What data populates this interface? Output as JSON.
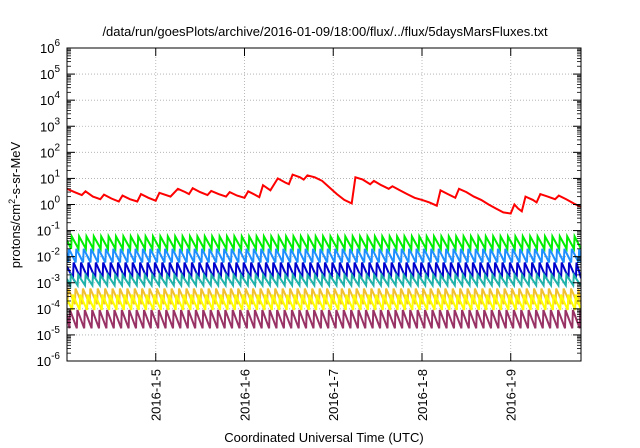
{
  "chart_data": {
    "type": "line",
    "title": "/data/run/goesPlots/archive/2016-01-09/18:00/flux/../flux/5daysMarsFluxes.txt",
    "xlabel": "Coordinated Universal Time (UTC)",
    "ylabel": {
      "prefix": "protons/cm",
      "superscript": "2",
      "suffix": "-s-sr-MeV"
    },
    "x_range": [
      "2016-01-04 00:00",
      "2016-01-09 19:00"
    ],
    "x_ticks": [
      "2016-1-5",
      "2016-1-6",
      "2016-1-7",
      "2016-1-8",
      "2016-1-9"
    ],
    "y_scale": "log",
    "y_range": [
      1e-06,
      1000000.0
    ],
    "y_ticks": [
      {
        "base": "10",
        "exp": "-6"
      },
      {
        "base": "10",
        "exp": "-5"
      },
      {
        "base": "10",
        "exp": "-4"
      },
      {
        "base": "10",
        "exp": "-3"
      },
      {
        "base": "10",
        "exp": "-2"
      },
      {
        "base": "10",
        "exp": "-1"
      },
      {
        "base": "10",
        "exp": "0"
      },
      {
        "base": "10",
        "exp": "1"
      },
      {
        "base": "10",
        "exp": "2"
      },
      {
        "base": "10",
        "exp": "3"
      },
      {
        "base": "10",
        "exp": "4"
      },
      {
        "base": "10",
        "exp": "5"
      },
      {
        "base": "10",
        "exp": "6"
      }
    ],
    "grid": true,
    "legend": "none",
    "series": [
      {
        "color": "#ff0000",
        "style": "irregular",
        "points": [
          [
            "2016-01-04 00:00",
            4.0
          ],
          [
            "2016-01-04 02:00",
            3.0
          ],
          [
            "2016-01-04 04:00",
            2.3
          ],
          [
            "2016-01-04 05:00",
            3.2
          ],
          [
            "2016-01-04 07:00",
            2.0
          ],
          [
            "2016-01-04 09:00",
            1.6
          ],
          [
            "2016-01-04 10:00",
            2.4
          ],
          [
            "2016-01-04 12:00",
            1.7
          ],
          [
            "2016-01-04 14:00",
            1.3
          ],
          [
            "2016-01-04 15:00",
            2.2
          ],
          [
            "2016-01-04 17:00",
            1.6
          ],
          [
            "2016-01-04 19:00",
            1.3
          ],
          [
            "2016-01-04 20:00",
            2.5
          ],
          [
            "2016-01-04 22:00",
            1.8
          ],
          [
            "2016-01-05 00:00",
            1.4
          ],
          [
            "2016-01-05 01:00",
            2.8
          ],
          [
            "2016-01-05 04:00",
            2.0
          ],
          [
            "2016-01-05 06:00",
            4.0
          ],
          [
            "2016-01-05 08:00",
            3.0
          ],
          [
            "2016-01-05 09:00",
            2.5
          ],
          [
            "2016-01-05 10:00",
            4.2
          ],
          [
            "2016-01-05 12:00",
            3.0
          ],
          [
            "2016-01-05 14:00",
            2.3
          ],
          [
            "2016-01-05 15:00",
            3.3
          ],
          [
            "2016-01-05 17:00",
            2.5
          ],
          [
            "2016-01-05 19:00",
            2.0
          ],
          [
            "2016-01-05 20:00",
            3.0
          ],
          [
            "2016-01-05 22:00",
            2.2
          ],
          [
            "2016-01-06 00:00",
            1.8
          ],
          [
            "2016-01-06 01:00",
            3.2
          ],
          [
            "2016-01-06 03:00",
            2.3
          ],
          [
            "2016-01-06 04:00",
            1.9
          ],
          [
            "2016-01-06 05:00",
            5.5
          ],
          [
            "2016-01-06 07:00",
            3.5
          ],
          [
            "2016-01-06 09:00",
            10.0
          ],
          [
            "2016-01-06 11:00",
            7.0
          ],
          [
            "2016-01-06 12:00",
            6.0
          ],
          [
            "2016-01-06 13:00",
            14.0
          ],
          [
            "2016-01-06 15:00",
            11.0
          ],
          [
            "2016-01-06 16:00",
            9.0
          ],
          [
            "2016-01-06 17:00",
            13.0
          ],
          [
            "2016-01-06 19:00",
            11.0
          ],
          [
            "2016-01-06 21:00",
            8.0
          ],
          [
            "2016-01-06 23:00",
            4.5
          ],
          [
            "2016-01-07 01:00",
            2.5
          ],
          [
            "2016-01-07 03:00",
            1.5
          ],
          [
            "2016-01-07 05:00",
            1.1
          ],
          [
            "2016-01-07 06:00",
            11.0
          ],
          [
            "2016-01-07 08:00",
            9.0
          ],
          [
            "2016-01-07 10:00",
            6.0
          ],
          [
            "2016-01-07 11:00",
            8.0
          ],
          [
            "2016-01-07 13:00",
            5.5
          ],
          [
            "2016-01-07 15:00",
            4.0
          ],
          [
            "2016-01-07 16:00",
            5.0
          ],
          [
            "2016-01-07 18:00",
            3.5
          ],
          [
            "2016-01-07 20:00",
            2.5
          ],
          [
            "2016-01-07 22:00",
            1.8
          ],
          [
            "2016-01-08 00:00",
            1.5
          ],
          [
            "2016-01-08 02:00",
            1.2
          ],
          [
            "2016-01-08 04:00",
            0.9
          ],
          [
            "2016-01-08 05:00",
            3.5
          ],
          [
            "2016-01-08 07:00",
            2.5
          ],
          [
            "2016-01-08 09:00",
            1.8
          ],
          [
            "2016-01-08 10:00",
            4.0
          ],
          [
            "2016-01-08 12:00",
            3.0
          ],
          [
            "2016-01-08 14:00",
            2.0
          ],
          [
            "2016-01-08 16:00",
            1.5
          ],
          [
            "2016-01-08 18:00",
            1.0
          ],
          [
            "2016-01-08 20:00",
            0.7
          ],
          [
            "2016-01-08 22:00",
            0.5
          ],
          [
            "2016-01-09 00:00",
            0.45
          ],
          [
            "2016-01-09 01:00",
            1.0
          ],
          [
            "2016-01-09 02:00",
            0.7
          ],
          [
            "2016-01-09 03:00",
            0.55
          ],
          [
            "2016-01-09 04:00",
            2.0
          ],
          [
            "2016-01-09 06:00",
            1.5
          ],
          [
            "2016-01-09 07:00",
            1.2
          ],
          [
            "2016-01-09 08:00",
            2.5
          ],
          [
            "2016-01-09 10:00",
            2.0
          ],
          [
            "2016-01-09 12:00",
            1.6
          ],
          [
            "2016-01-09 13:00",
            2.2
          ],
          [
            "2016-01-09 15:00",
            1.6
          ],
          [
            "2016-01-09 17:00",
            1.1
          ],
          [
            "2016-01-09 19:00",
            0.8
          ]
        ]
      },
      {
        "color": "#00ee00",
        "style": "sawtooth",
        "low": 0.02,
        "high": 0.06
      },
      {
        "color": "#1e90ff",
        "style": "sawtooth",
        "low": 0.006,
        "high": 0.02
      },
      {
        "color": "#0000cd",
        "style": "sawtooth",
        "low": 0.0015,
        "high": 0.006
      },
      {
        "color": "#20b2aa",
        "style": "sawtooth",
        "low": 0.0008,
        "high": 0.002
      },
      {
        "color": "#f0c030",
        "style": "sawtooth",
        "low": 0.00015,
        "high": 0.0006
      },
      {
        "color": "#ffff00",
        "style": "sawtooth",
        "low": 9e-05,
        "high": 0.00035
      },
      {
        "color": "#993366",
        "style": "sawtooth",
        "low": 1.8e-05,
        "high": 9e-05
      }
    ]
  }
}
